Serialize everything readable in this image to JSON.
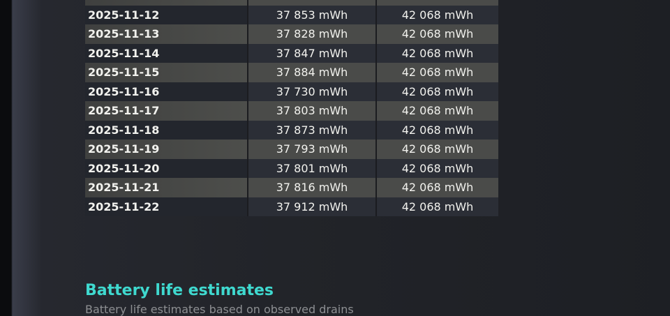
{
  "table": {
    "rows": [
      {
        "date": "2025-11-12",
        "full_charge": "37 853 mWh",
        "design": "42 068 mWh"
      },
      {
        "date": "2025-11-13",
        "full_charge": "37 828 mWh",
        "design": "42 068 mWh"
      },
      {
        "date": "2025-11-14",
        "full_charge": "37 847 mWh",
        "design": "42 068 mWh"
      },
      {
        "date": "2025-11-15",
        "full_charge": "37 884 mWh",
        "design": "42 068 mWh"
      },
      {
        "date": "2025-11-16",
        "full_charge": "37 730 mWh",
        "design": "42 068 mWh"
      },
      {
        "date": "2025-11-17",
        "full_charge": "37 803 mWh",
        "design": "42 068 mWh"
      },
      {
        "date": "2025-11-18",
        "full_charge": "37 873 mWh",
        "design": "42 068 mWh"
      },
      {
        "date": "2025-11-19",
        "full_charge": "37 793 mWh",
        "design": "42 068 mWh"
      },
      {
        "date": "2025-11-20",
        "full_charge": "37 801 mWh",
        "design": "42 068 mWh"
      },
      {
        "date": "2025-11-21",
        "full_charge": "37 816 mWh",
        "design": "42 068 mWh"
      },
      {
        "date": "2025-11-22",
        "full_charge": "37 912 mWh",
        "design": "42 068 mWh"
      }
    ]
  },
  "section": {
    "title": "Battery life estimates",
    "subtitle": "Battery life estimates based on observed drains"
  },
  "colors": {
    "heading": "#3fd9cf",
    "row_dark": "#2b2e36",
    "row_light": "#4a4b49"
  }
}
